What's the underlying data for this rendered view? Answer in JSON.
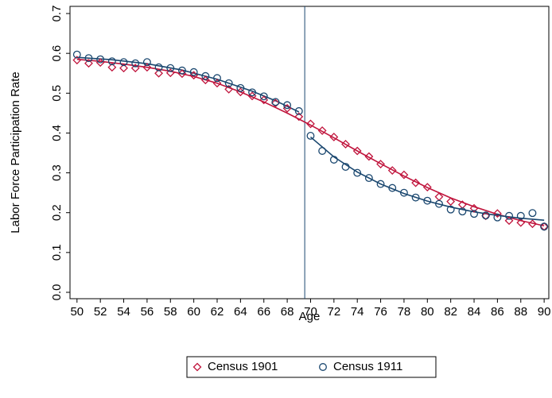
{
  "chart_data": {
    "type": "scatter",
    "x_label": "Age",
    "y_label": "Labor Force Participation Rate",
    "xlim": [
      49.4,
      90.4
    ],
    "ylim": [
      -0.016,
      0.718
    ],
    "xticks": [
      50,
      52,
      54,
      56,
      58,
      60,
      62,
      64,
      66,
      68,
      70,
      72,
      74,
      76,
      78,
      80,
      82,
      84,
      86,
      88,
      90
    ],
    "yticks": [
      {
        "value": 0,
        "label": "0.0"
      },
      0.1,
      0.2,
      0.3,
      0.4,
      0.5,
      0.6,
      0.7
    ],
    "vline": 69.5,
    "x": [
      50,
      51,
      52,
      53,
      54,
      55,
      56,
      57,
      58,
      59,
      60,
      61,
      62,
      63,
      64,
      65,
      66,
      67,
      68,
      69,
      70,
      71,
      72,
      73,
      74,
      75,
      76,
      77,
      78,
      79,
      80,
      81,
      82,
      83,
      84,
      85,
      86,
      87,
      88,
      89,
      90
    ],
    "series": [
      {
        "name": "Census 1901",
        "color": "#c0143c",
        "marker": "diamond",
        "values": [
          0.583,
          0.575,
          0.577,
          0.565,
          0.563,
          0.563,
          0.565,
          0.55,
          0.551,
          0.549,
          0.545,
          0.533,
          0.525,
          0.51,
          0.503,
          0.493,
          0.483,
          0.475,
          0.462,
          0.441,
          0.423,
          0.406,
          0.39,
          0.372,
          0.355,
          0.341,
          0.322,
          0.306,
          0.295,
          0.275,
          0.264,
          0.24,
          0.228,
          0.22,
          0.211,
          0.192,
          0.198,
          0.18,
          0.175,
          0.172,
          0.165
        ]
      },
      {
        "name": "Census 1911",
        "color": "#1a476f",
        "marker": "circle",
        "values": [
          0.597,
          0.588,
          0.585,
          0.58,
          0.578,
          0.575,
          0.578,
          0.565,
          0.563,
          0.557,
          0.553,
          0.543,
          0.538,
          0.525,
          0.513,
          0.502,
          0.492,
          0.478,
          0.47,
          0.455,
          0.393,
          0.355,
          0.333,
          0.315,
          0.3,
          0.287,
          0.272,
          0.262,
          0.25,
          0.238,
          0.23,
          0.222,
          0.208,
          0.203,
          0.197,
          0.193,
          0.188,
          0.192,
          0.192,
          0.199,
          0.165
        ]
      }
    ],
    "fit_lines": [
      {
        "color": "#c0143c",
        "x": [
          50,
          52,
          54,
          56,
          58,
          60,
          62,
          64,
          66,
          68,
          70,
          72,
          74,
          76,
          78,
          80,
          82,
          84,
          86,
          88,
          90
        ],
        "values": [
          0.585,
          0.58,
          0.573,
          0.565,
          0.555,
          0.542,
          0.525,
          0.503,
          0.478,
          0.45,
          0.42,
          0.388,
          0.355,
          0.323,
          0.292,
          0.263,
          0.237,
          0.215,
          0.196,
          0.18,
          0.167
        ]
      },
      {
        "color": "#1a476f",
        "x": [
          50,
          53,
          56,
          59,
          62,
          65,
          67,
          69
        ],
        "values": [
          0.59,
          0.584,
          0.574,
          0.558,
          0.535,
          0.505,
          0.481,
          0.453
        ]
      },
      {
        "color": "#1a476f",
        "x": [
          70,
          72,
          74,
          76,
          78,
          80,
          82,
          84,
          86,
          88,
          90
        ],
        "values": [
          0.39,
          0.34,
          0.302,
          0.272,
          0.248,
          0.229,
          0.214,
          0.202,
          0.193,
          0.186,
          0.181
        ]
      }
    ]
  }
}
